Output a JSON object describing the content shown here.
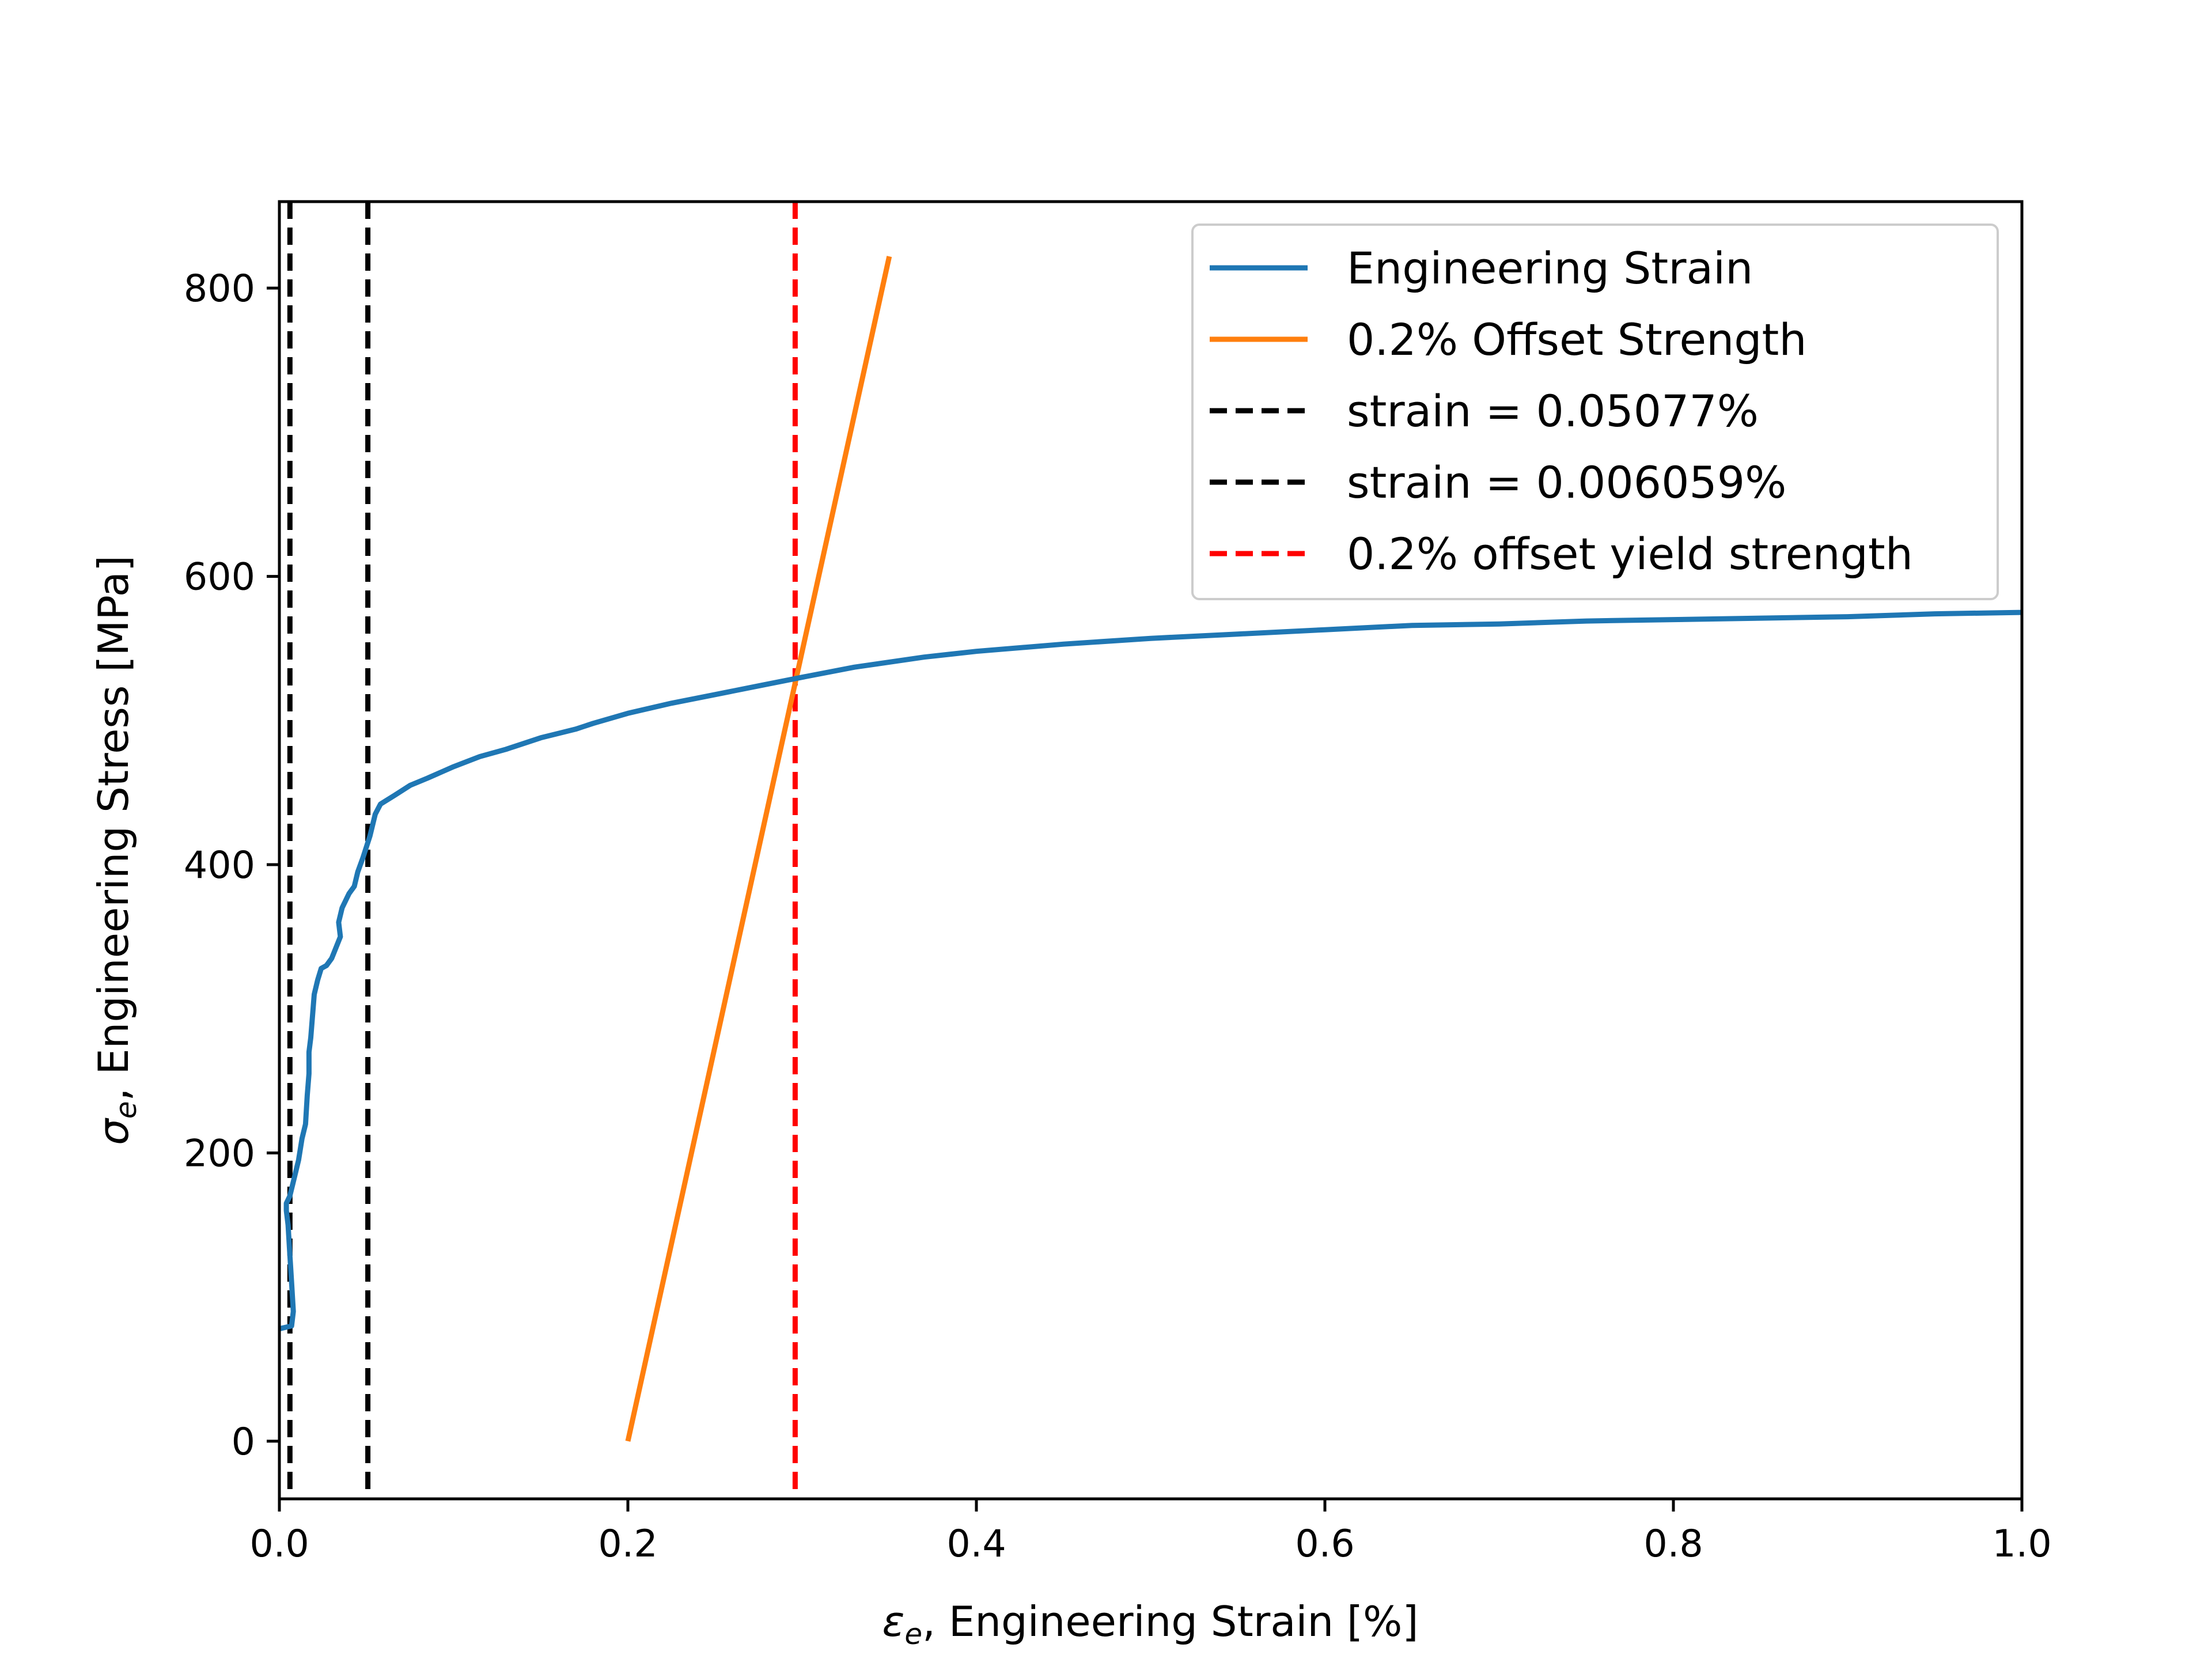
{
  "chart_data": {
    "type": "line",
    "xlabel_symbol": "ε",
    "xlabel_sub": "e",
    "xlabel_text": ", Engineering Strain  [%]",
    "ylabel_symbol": "σ",
    "ylabel_sub": "e",
    "ylabel_text": ", Engineering Stress  [MPa]",
    "xlim": [
      0.0,
      1.0
    ],
    "ylim": [
      -40,
      860
    ],
    "x_ticks": [
      0.0,
      0.2,
      0.4,
      0.6,
      0.8,
      1.0
    ],
    "x_tick_labels": [
      "0.0",
      "0.2",
      "0.4",
      "0.6",
      "0.8",
      "1.0"
    ],
    "y_ticks": [
      0,
      200,
      400,
      600,
      800
    ],
    "y_tick_labels": [
      "0",
      "200",
      "400",
      "600",
      "800"
    ],
    "grid": false,
    "legend_position": "top-right",
    "series": [
      {
        "name": "Engineering Strain",
        "color": "#1f77b4",
        "style": "solid",
        "x": [
          0.0,
          0.007,
          0.008,
          0.007,
          0.006,
          0.005,
          0.004,
          0.004,
          0.006,
          0.008,
          0.011,
          0.013,
          0.015,
          0.016,
          0.017,
          0.017,
          0.018,
          0.019,
          0.02,
          0.022,
          0.024,
          0.027,
          0.03,
          0.035,
          0.034,
          0.036,
          0.04,
          0.043,
          0.045,
          0.048,
          0.052,
          0.055,
          0.058,
          0.062,
          0.066,
          0.075,
          0.085,
          0.1,
          0.115,
          0.13,
          0.135,
          0.15,
          0.17,
          0.18,
          0.2,
          0.225,
          0.25,
          0.275,
          0.3,
          0.33,
          0.37,
          0.4,
          0.45,
          0.5,
          0.55,
          0.6,
          0.65,
          0.7,
          0.75,
          0.8,
          0.85,
          0.9,
          0.95,
          1.0
        ],
        "y": [
          78,
          80,
          90,
          110,
          130,
          150,
          160,
          165,
          170,
          180,
          195,
          210,
          220,
          240,
          255,
          270,
          280,
          295,
          310,
          320,
          328,
          330,
          335,
          350,
          360,
          370,
          380,
          385,
          395,
          405,
          420,
          435,
          442,
          445,
          448,
          455,
          460,
          468,
          475,
          480,
          482,
          488,
          494,
          498,
          505,
          512,
          518,
          524,
          530,
          537,
          544,
          548,
          553,
          557,
          560,
          563,
          566,
          567,
          569,
          570,
          571,
          572,
          574,
          575
        ]
      },
      {
        "name": "0.2% Offset Strength",
        "color": "#ff7f0e",
        "style": "solid",
        "x": [
          0.2,
          0.35
        ],
        "y": [
          0,
          822
        ]
      },
      {
        "name": "strain = 0.05077%",
        "color": "#000000",
        "style": "dashed",
        "vline_x": 0.05077
      },
      {
        "name": "strain = 0.006059%",
        "color": "#000000",
        "style": "dashed",
        "vline_x": 0.006059
      },
      {
        "name": "0.2% offset yield strength",
        "color": "#ff0000",
        "style": "dashed",
        "vline_x": 0.296
      }
    ]
  }
}
